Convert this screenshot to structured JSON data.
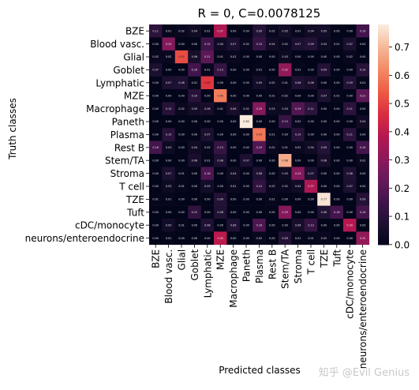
{
  "chart_data": {
    "type": "heatmap",
    "title": "R = 0, C=0.0078125",
    "xlabel": "Predicted classes",
    "ylabel": "Truth classes",
    "categories": [
      "BZE",
      "Blood vasc.",
      "Glial",
      "Goblet",
      "Lymphatic",
      "MZE",
      "Macrophage",
      "Paneth",
      "Plasma",
      "Rest B",
      "Stem/TA",
      "Stroma",
      "T cell",
      "TZE",
      "Tuft",
      "cDC/monocyte",
      "neurons/enteroendocrine"
    ],
    "values": [
      [
        0.11,
        0.01,
        0.02,
        0.04,
        0.01,
        0.37,
        0.0,
        0.0,
        0.09,
        0.02,
        0.05,
        0.01,
        0.04,
        0.05,
        0.0,
        0.0,
        0.16
      ],
      [
        0.0,
        0.29,
        0.0,
        0.0,
        0.15,
        0.04,
        0.07,
        0.02,
        0.13,
        0.04,
        0.02,
        0.07,
        0.09,
        0.03,
        0.01,
        0.07,
        0.0
      ],
      [
        0.02,
        0.02,
        0.52,
        0.06,
        0.21,
        0.01,
        0.02,
        0.0,
        0.0,
        0.0,
        0.03,
        0.0,
        0.0,
        0.0,
        0.0,
        0.02,
        0.0
      ],
      [
        0.07,
        0.0,
        0.0,
        0.16,
        0.01,
        0.13,
        0.0,
        0.0,
        0.01,
        0.0,
        0.32,
        0.01,
        0.0,
        0.09,
        0.0,
        0.0,
        0.1
      ],
      [
        0.0,
        0.07,
        0.08,
        0.01,
        0.48,
        0.0,
        0.0,
        0.0,
        0.05,
        0.02,
        0.01,
        0.08,
        0.06,
        0.0,
        0.0,
        0.09,
        0.01
      ],
      [
        0.0,
        0.0,
        0.0,
        0.1,
        0.0,
        0.6,
        0.0,
        0.0,
        0.0,
        0.01,
        0.02,
        0.0,
        0.0,
        0.07,
        0.01,
        0.0,
        0.21
      ],
      [
        0.0,
        0.1,
        0.02,
        0.05,
        0.06,
        0.01,
        0.06,
        0.02,
        0.29,
        0.03,
        0.03,
        0.19,
        0.11,
        0.0,
        0.0,
        0.11,
        0.0
      ],
      [
        0.0,
        0.0,
        0.0,
        0.0,
        0.0,
        0.0,
        0.0,
        0.8,
        0.0,
        0.0,
        0.13,
        0.02,
        0.0,
        0.0,
        0.0,
        0.0,
        0.04
      ],
      [
        0.0,
        0.1,
        0.0,
        0.0,
        0.07,
        0.0,
        0.0,
        0.0,
        0.59,
        0.01,
        0.0,
        0.1,
        0.0,
        0.0,
        0.0,
        0.11,
        0.0
      ],
      [
        0.16,
        0.03,
        0.0,
        0.04,
        0.02,
        0.13,
        0.0,
        0.0,
        0.19,
        0.02,
        0.01,
        0.02,
        0.04,
        0.09,
        0.0,
        0.0,
        0.16
      ],
      [
        0.0,
        0.0,
        0.0,
        0.06,
        0.01,
        0.08,
        0.0,
        0.07,
        0.0,
        0.0,
        0.68,
        0.0,
        0.0,
        0.06,
        0.0,
        0.0,
        0.02
      ],
      [
        0.0,
        0.07,
        0.01,
        0.0,
        0.18,
        0.0,
        0.04,
        0.0,
        0.08,
        0.0,
        0.03,
        0.29,
        0.07,
        0.0,
        0.0,
        0.08,
        0.0
      ],
      [
        0.0,
        0.03,
        0.01,
        0.0,
        0.05,
        0.0,
        0.02,
        0.0,
        0.12,
        0.02,
        0.02,
        0.04,
        0.37,
        0.0,
        0.0,
        0.07,
        0.0
      ],
      [
        0.01,
        0.01,
        0.0,
        0.0,
        0.0,
        0.09,
        0.0,
        0.0,
        0.0,
        0.01,
        0.0,
        0.0,
        0.0,
        0.77,
        0.0,
        0.0,
        0.09
      ],
      [
        0.0,
        0.0,
        0.0,
        0.12,
        0.0,
        0.08,
        0.0,
        0.0,
        0.0,
        0.0,
        0.29,
        0.0,
        0.0,
        0.08,
        0.16,
        0.0,
        0.16
      ],
      [
        0.0,
        0.05,
        0.01,
        0.0,
        0.08,
        0.0,
        0.08,
        0.0,
        0.18,
        0.0,
        0.0,
        0.06,
        0.13,
        0.0,
        0.0,
        0.39,
        0.0
      ],
      [
        0.0,
        0.01,
        0.0,
        0.0,
        0.0,
        0.4,
        0.0,
        0.0,
        0.02,
        0.0,
        0.09,
        0.01,
        0.01,
        0.02,
        0.0,
        0.0,
        0.32
      ]
    ],
    "colorbar": {
      "range": [
        0.0,
        0.78
      ],
      "ticks": [
        0.0,
        0.1,
        0.2,
        0.3,
        0.4,
        0.5,
        0.6,
        0.7
      ],
      "colormap": "rocket"
    },
    "grid": false
  },
  "watermark": "知乎 @Evil Genius"
}
